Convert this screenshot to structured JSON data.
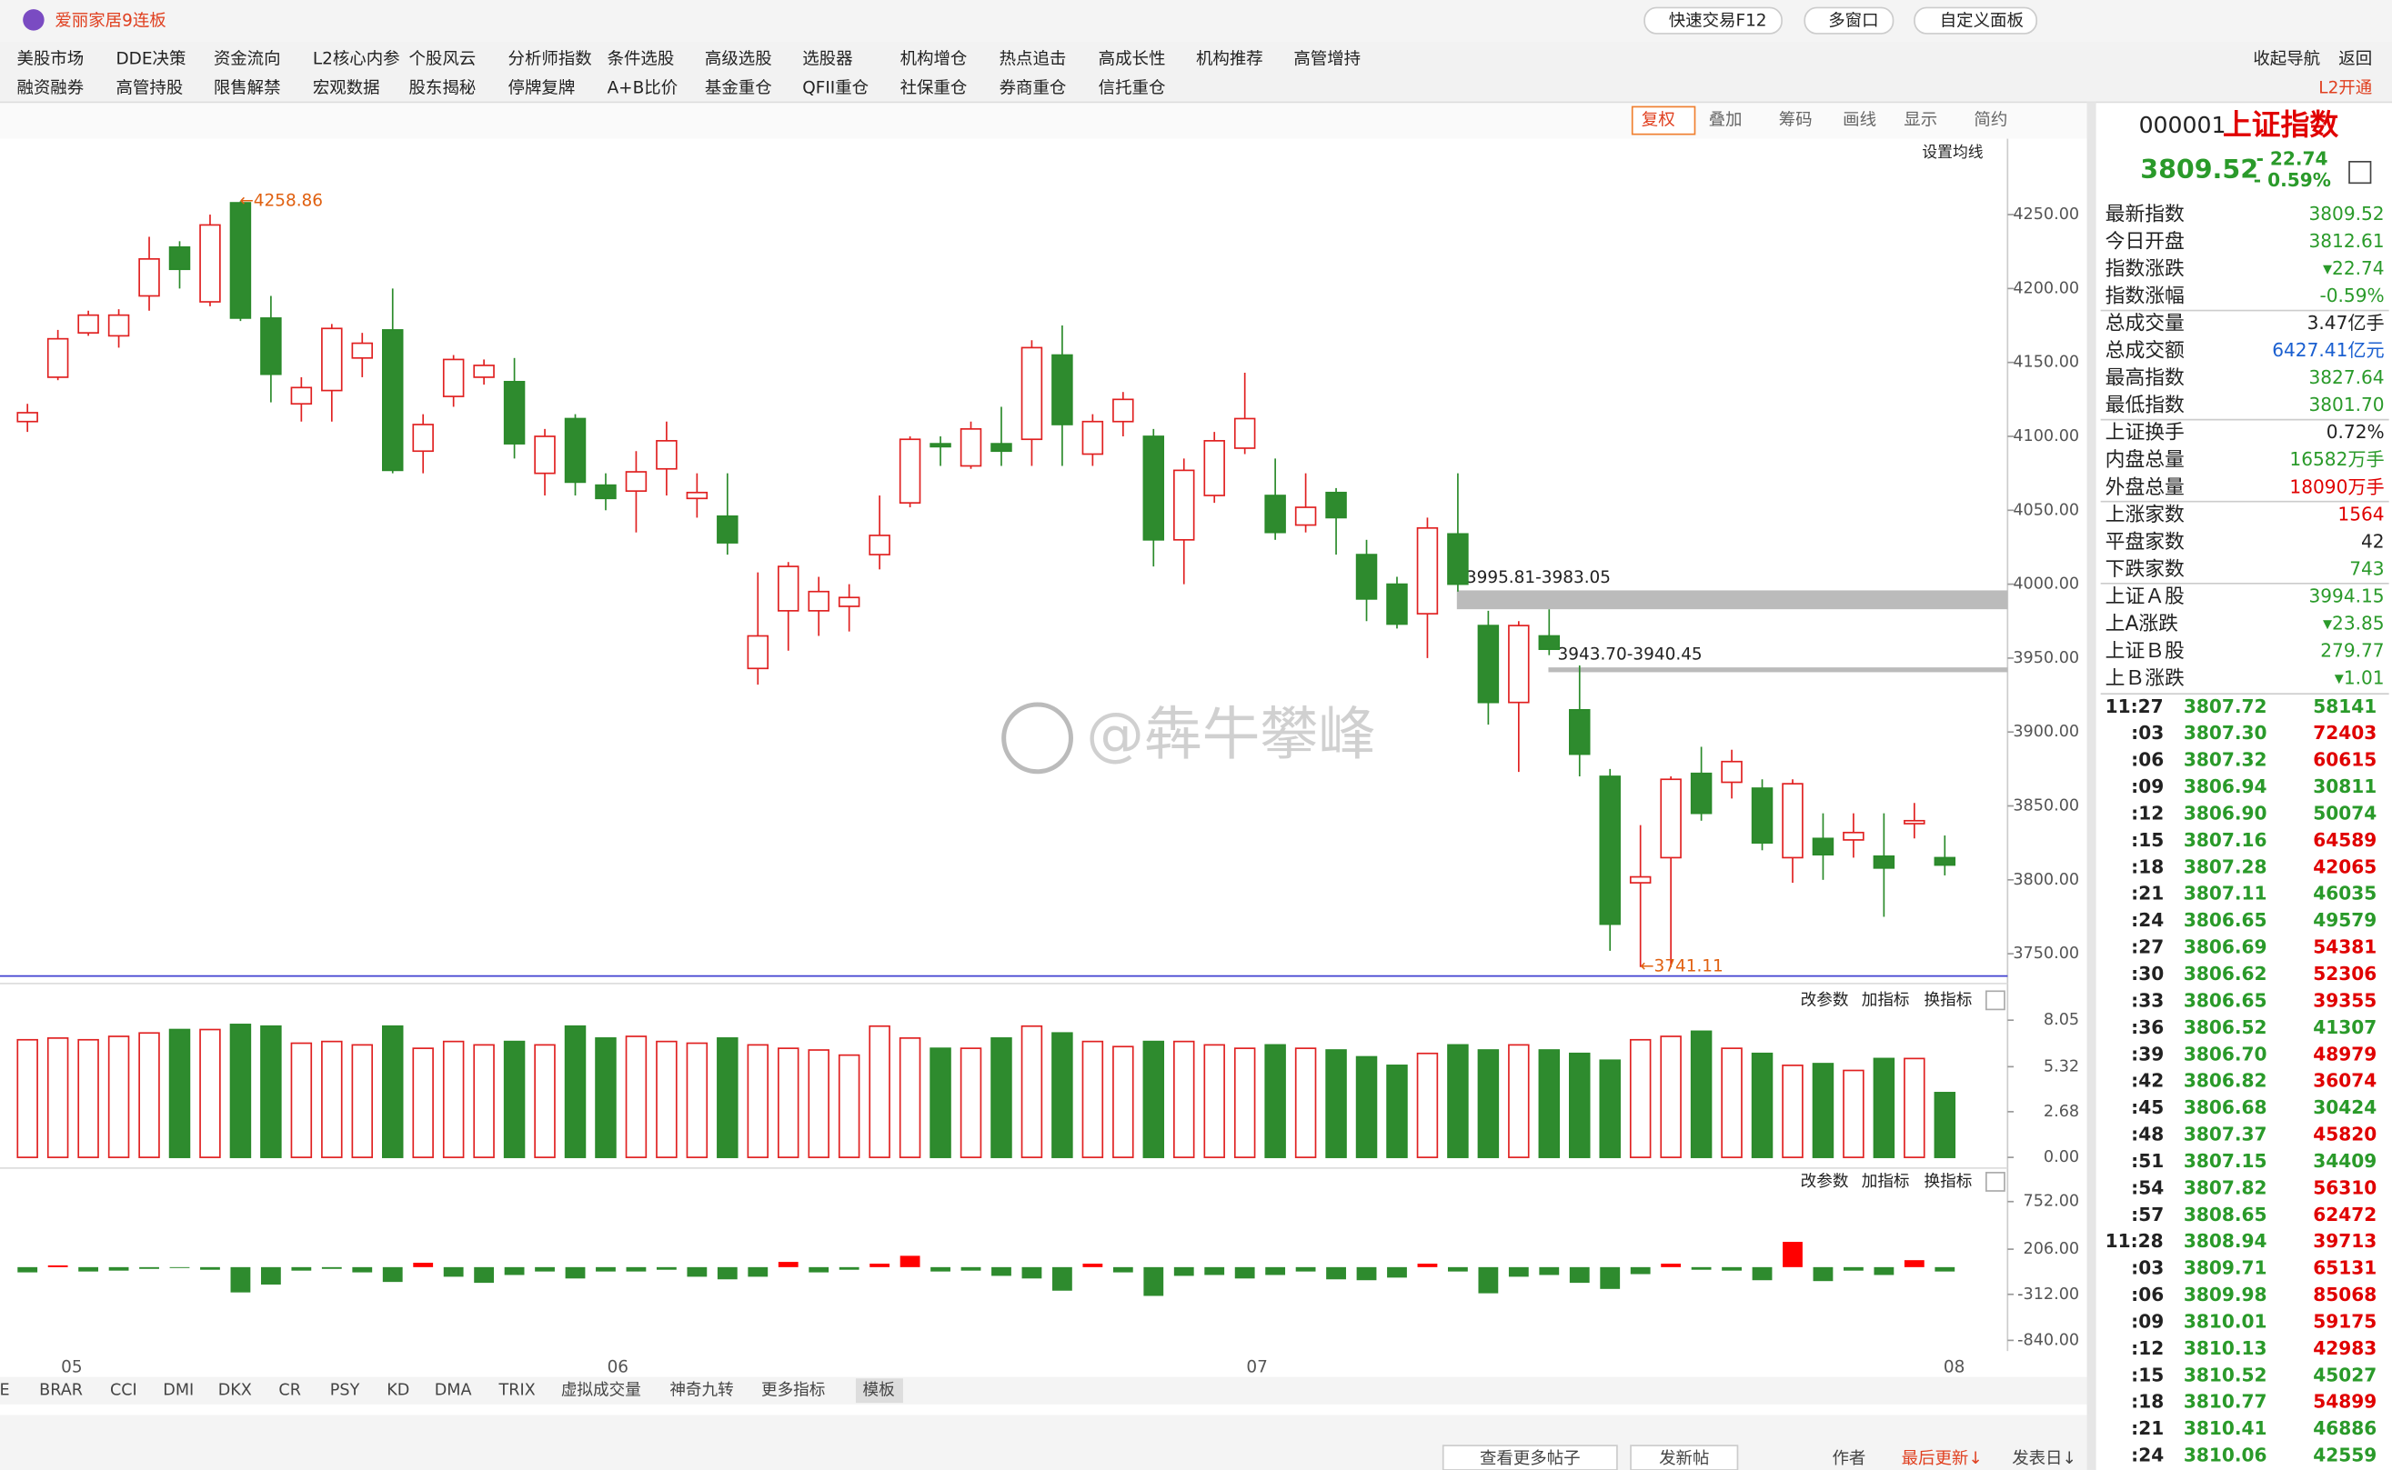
{
  "title_bar": {
    "title": "爱丽家居9连板",
    "buttons": [
      "快速交易F12",
      "多窗口",
      "自定义面板"
    ]
  },
  "menu": {
    "row1": [
      "美股市场",
      "DDE决策",
      "资金流向",
      "L2核心内参",
      "个股风云",
      "分析师指数",
      "条件选股",
      "高级选股",
      "选股器",
      "机构增仓",
      "热点追击",
      "高成长性",
      "机构推荐",
      "高管增持"
    ],
    "row2": [
      "融资融券",
      "高管持股",
      "限售解禁",
      "宏观数据",
      "股东揭秘",
      "停牌复牌",
      "A+B比价",
      "基金重仓",
      "QFII重仓",
      "社保重仓",
      "券商重仓",
      "信托重仓"
    ],
    "right1": [
      "收起导航",
      "返回"
    ],
    "right2": "L2开通"
  },
  "toolbar": [
    "复权",
    "叠加",
    "筹码",
    "画线",
    "显示",
    "简约"
  ],
  "ma_setting": "设置均线",
  "kline": {
    "ylim": [
      3735,
      4292
    ],
    "yticks": [
      {
        "value": 4250,
        "label": "4250.00"
      },
      {
        "value": 4200,
        "label": "4200.00"
      },
      {
        "value": 4150,
        "label": "4150.00"
      },
      {
        "value": 4100,
        "label": "4100.00"
      },
      {
        "value": 4050,
        "label": "4050.00"
      },
      {
        "value": 4000,
        "label": "4000.00"
      },
      {
        "value": 3950,
        "label": "3950.00"
      },
      {
        "value": 3900,
        "label": "3900.00"
      },
      {
        "value": 3850,
        "label": "3850.00"
      },
      {
        "value": 3800,
        "label": "3800.00"
      },
      {
        "value": 3750,
        "label": "3750.00"
      }
    ],
    "candles": [
      {
        "open": 4110,
        "close": 4116,
        "high": 4122,
        "low": 4103
      },
      {
        "open": 4140,
        "close": 4166,
        "high": 4172,
        "low": 4138
      },
      {
        "open": 4170,
        "close": 4182,
        "high": 4185,
        "low": 4168
      },
      {
        "open": 4168,
        "close": 4182,
        "high": 4186,
        "low": 4160
      },
      {
        "open": 4195,
        "close": 4220,
        "high": 4235,
        "low": 4185
      },
      {
        "open": 4228,
        "close": 4213,
        "high": 4232,
        "low": 4200
      },
      {
        "open": 4191,
        "close": 4243,
        "high": 4250,
        "low": 4188
      },
      {
        "open": 4258,
        "close": 4180,
        "high": 4259,
        "low": 4178
      },
      {
        "open": 4180,
        "close": 4142,
        "high": 4195,
        "low": 4123
      },
      {
        "open": 4122,
        "close": 4133,
        "high": 4140,
        "low": 4110
      },
      {
        "open": 4131,
        "close": 4173,
        "high": 4176,
        "low": 4110
      },
      {
        "open": 4153,
        "close": 4163,
        "high": 4170,
        "low": 4140
      },
      {
        "open": 4172,
        "close": 4077,
        "high": 4200,
        "low": 4075
      },
      {
        "open": 4090,
        "close": 4108,
        "high": 4115,
        "low": 4075
      },
      {
        "open": 4127,
        "close": 4152,
        "high": 4155,
        "low": 4120
      },
      {
        "open": 4140,
        "close": 4148,
        "high": 4152,
        "low": 4135
      },
      {
        "open": 4137,
        "close": 4095,
        "high": 4153,
        "low": 4085
      },
      {
        "open": 4075,
        "close": 4100,
        "high": 4105,
        "low": 4060
      },
      {
        "open": 4112,
        "close": 4069,
        "high": 4115,
        "low": 4060
      },
      {
        "open": 4067,
        "close": 4058,
        "high": 4075,
        "low": 4050
      },
      {
        "open": 4063,
        "close": 4076,
        "high": 4090,
        "low": 4035
      },
      {
        "open": 4078,
        "close": 4097,
        "high": 4110,
        "low": 4060
      },
      {
        "open": 4058,
        "close": 4062,
        "high": 4075,
        "low": 4045
      },
      {
        "open": 4046,
        "close": 4028,
        "high": 4075,
        "low": 4020
      },
      {
        "open": 3943,
        "close": 3965,
        "high": 4008,
        "low": 3932
      },
      {
        "open": 3982,
        "close": 4012,
        "high": 4015,
        "low": 3955
      },
      {
        "open": 3982,
        "close": 3995,
        "high": 4005,
        "low": 3965
      },
      {
        "open": 3985,
        "close": 3991,
        "high": 4000,
        "low": 3968
      },
      {
        "open": 4020,
        "close": 4033,
        "high": 4060,
        "low": 4010
      },
      {
        "open": 4055,
        "close": 4098,
        "high": 4100,
        "low": 4052
      },
      {
        "open": 4095,
        "close": 4093,
        "high": 4100,
        "low": 4080
      },
      {
        "open": 4080,
        "close": 4105,
        "high": 4110,
        "low": 4078
      },
      {
        "open": 4095,
        "close": 4090,
        "high": 4120,
        "low": 4080
      },
      {
        "open": 4098,
        "close": 4160,
        "high": 4165,
        "low": 4080
      },
      {
        "open": 4155,
        "close": 4108,
        "high": 4175,
        "low": 4080
      },
      {
        "open": 4088,
        "close": 4110,
        "high": 4115,
        "low": 4080
      },
      {
        "open": 4110,
        "close": 4125,
        "high": 4130,
        "low": 4100
      },
      {
        "open": 4100,
        "close": 4030,
        "high": 4105,
        "low": 4012
      },
      {
        "open": 4030,
        "close": 4077,
        "high": 4085,
        "low": 4000
      },
      {
        "open": 4060,
        "close": 4097,
        "high": 4103,
        "low": 4055
      },
      {
        "open": 4092,
        "close": 4112,
        "high": 4143,
        "low": 4088
      },
      {
        "open": 4060,
        "close": 4035,
        "high": 4085,
        "low": 4030
      },
      {
        "open": 4040,
        "close": 4052,
        "high": 4075,
        "low": 4035
      },
      {
        "open": 4062,
        "close": 4045,
        "high": 4065,
        "low": 4020
      },
      {
        "open": 4020,
        "close": 3990,
        "high": 4030,
        "low": 3975
      },
      {
        "open": 4000,
        "close": 3973,
        "high": 4005,
        "low": 3970
      },
      {
        "open": 3980,
        "close": 4038,
        "high": 4045,
        "low": 3950
      },
      {
        "open": 4034,
        "close": 4000,
        "high": 4075,
        "low": 3995
      },
      {
        "open": 3972,
        "close": 3920,
        "high": 3982,
        "low": 3905
      },
      {
        "open": 3920,
        "close": 3972,
        "high": 3975,
        "low": 3873
      },
      {
        "open": 3965,
        "close": 3956,
        "high": 3983,
        "low": 3952
      },
      {
        "open": 3915,
        "close": 3885,
        "high": 3945,
        "low": 3870
      },
      {
        "open": 3870,
        "close": 3770,
        "high": 3875,
        "low": 3752
      },
      {
        "open": 3798,
        "close": 3802,
        "high": 3837,
        "low": 3741
      },
      {
        "open": 3815,
        "close": 3868,
        "high": 3870,
        "low": 3741
      },
      {
        "open": 3872,
        "close": 3845,
        "high": 3890,
        "low": 3840
      },
      {
        "open": 3866,
        "close": 3880,
        "high": 3888,
        "low": 3855
      },
      {
        "open": 3862,
        "close": 3825,
        "high": 3868,
        "low": 3820
      },
      {
        "open": 3815,
        "close": 3865,
        "high": 3868,
        "low": 3798
      },
      {
        "open": 3828,
        "close": 3817,
        "high": 3845,
        "low": 3800
      },
      {
        "open": 3827,
        "close": 3832,
        "high": 3845,
        "low": 3815
      },
      {
        "open": 3816,
        "close": 3808,
        "high": 3845,
        "low": 3775
      },
      {
        "open": 3838,
        "close": 3840,
        "high": 3852,
        "low": 3828
      },
      {
        "open": 3815,
        "close": 3810,
        "high": 3830,
        "low": 3803
      }
    ],
    "annotations": [
      {
        "label": "←4258.86",
        "value": 4258.86
      },
      {
        "label": "←3741.11",
        "value": 3741.11
      }
    ],
    "gaps": [
      {
        "label": "3995.81-3983.05",
        "high": 3995.81,
        "low": 3983.05
      },
      {
        "label": "3943.70-3940.45",
        "high": 3943.7,
        "low": 3940.45
      }
    ]
  },
  "volume": {
    "ylim": [
      0,
      8.41
    ],
    "yticks": [
      {
        "value": 8.05,
        "label": "8.05"
      },
      {
        "value": 5.32,
        "label": "5.32"
      },
      {
        "value": 2.68,
        "label": "2.68"
      },
      {
        "value": 0,
        "label": "0.00"
      }
    ],
    "values": [
      6.9,
      7.0,
      6.9,
      7.1,
      7.3,
      7.5,
      7.5,
      7.8,
      7.7,
      6.7,
      6.8,
      6.6,
      7.7,
      6.4,
      6.8,
      6.6,
      6.8,
      6.6,
      7.7,
      7.0,
      7.1,
      6.8,
      6.7,
      7.0,
      6.6,
      6.4,
      6.3,
      6.0,
      7.7,
      7.0,
      6.4,
      6.4,
      7.0,
      7.7,
      7.3,
      6.8,
      6.5,
      6.8,
      6.8,
      6.6,
      6.4,
      6.6,
      6.4,
      6.3,
      5.9,
      5.4,
      6.1,
      6.6,
      6.3,
      6.6,
      6.3,
      6.1,
      5.7,
      6.9,
      7.1,
      7.4,
      6.4,
      6.1,
      5.4,
      5.5,
      5.1,
      5.8,
      5.8,
      3.8
    ]
  },
  "macd": {
    "ylim": [
      -840,
      752
    ],
    "yticks": [
      {
        "value": 752,
        "label": "752.00"
      },
      {
        "value": 206,
        "label": "206.00"
      },
      {
        "value": -312,
        "label": "-312.00"
      },
      {
        "value": -840,
        "label": "-840.00"
      }
    ],
    "values": [
      -60,
      20,
      -50,
      -40,
      -20,
      -10,
      -30,
      -290,
      -200,
      -40,
      -20,
      -60,
      -170,
      50,
      -110,
      -180,
      -90,
      -50,
      -130,
      -50,
      -50,
      -30,
      -110,
      -140,
      -110,
      60,
      -60,
      -30,
      40,
      130,
      -50,
      -40,
      -100,
      -130,
      -270,
      40,
      -60,
      -330,
      -100,
      -90,
      -130,
      -90,
      -50,
      -140,
      -150,
      -120,
      40,
      -50,
      -300,
      -110,
      -90,
      -180,
      -250,
      -80,
      40,
      -30,
      -40,
      -150,
      290,
      -160,
      -40,
      -90,
      80,
      -50
    ]
  },
  "panel_buttons": [
    "改参数",
    "加指标",
    "换指标"
  ],
  "x_labels": [
    "05",
    "06",
    "07",
    "08"
  ],
  "watermark": "@犇牛攀峰",
  "indicator_tabs": [
    "E",
    "BRAR",
    "CCI",
    "DMI",
    "DKX",
    "CR",
    "PSY",
    "KD",
    "DMA",
    "TRIX",
    "虚拟成交量",
    "神奇九转",
    "更多指标",
    "模板"
  ],
  "bottom_bar": [
    "查看更多帖子",
    "发新帖",
    "作者",
    "最后更新↓",
    "发表日↓"
  ],
  "quote": {
    "code": "000001",
    "name": "上证指数",
    "price": "3809.52",
    "change": "- 22.74",
    "pct": "- 0.59%",
    "rows": [
      {
        "label": "最新指数",
        "value": "3809.52",
        "color": "#2a9a2a"
      },
      {
        "label": "今日开盘",
        "value": "3812.61",
        "color": "#2a9a2a"
      },
      {
        "label": "指数涨跌",
        "value": "▾22.74",
        "color": "#2a9a2a"
      },
      {
        "label": "指数涨幅",
        "value": "-0.59%",
        "color": "#2a9a2a"
      },
      {
        "label": "总成交量",
        "value": "3.47亿手",
        "color": "#222222"
      },
      {
        "label": "总成交额",
        "value": "6427.41亿元",
        "color": "#1a5fd0"
      },
      {
        "label": "最高指数",
        "value": "3827.64",
        "color": "#2a9a2a"
      },
      {
        "label": "最低指数",
        "value": "3801.70",
        "color": "#2a9a2a"
      },
      {
        "label": "上证换手",
        "value": "0.72%",
        "color": "#222222"
      },
      {
        "label": "内盘总量",
        "value": "16582万手",
        "color": "#2a9a2a"
      },
      {
        "label": "外盘总量",
        "value": "18090万手",
        "color": "#e00000"
      },
      {
        "label": "上涨家数",
        "value": "1564",
        "color": "#e00000"
      },
      {
        "label": "平盘家数",
        "value": "42",
        "color": "#222222"
      },
      {
        "label": "下跌家数",
        "value": "743",
        "color": "#2a9a2a"
      },
      {
        "label": "上证Ａ股",
        "value": "3994.15",
        "color": "#2a9a2a"
      },
      {
        "label": "上A涨跌",
        "value": "▾23.85",
        "color": "#2a9a2a"
      },
      {
        "label": "上证Ｂ股",
        "value": "279.77",
        "color": "#2a9a2a"
      },
      {
        "label": "上Ｂ涨跌",
        "value": "▾1.01",
        "color": "#2a9a2a"
      }
    ]
  },
  "ticks": [
    {
      "time": "11:27",
      "price": "3807.72",
      "volume": "58141",
      "color": "#2a9a2a"
    },
    {
      "time": ":03",
      "price": "3807.30",
      "volume": "72403",
      "color": "#e00000"
    },
    {
      "time": ":06",
      "price": "3807.32",
      "volume": "60615",
      "color": "#e00000"
    },
    {
      "time": ":09",
      "price": "3806.94",
      "volume": "30811",
      "color": "#2a9a2a"
    },
    {
      "time": ":12",
      "price": "3806.90",
      "volume": "50074",
      "color": "#2a9a2a"
    },
    {
      "time": ":15",
      "price": "3807.16",
      "volume": "64589",
      "color": "#e00000"
    },
    {
      "time": ":18",
      "price": "3807.28",
      "volume": "42065",
      "color": "#e00000"
    },
    {
      "time": ":21",
      "price": "3807.11",
      "volume": "46035",
      "color": "#2a9a2a"
    },
    {
      "time": ":24",
      "price": "3806.65",
      "volume": "49579",
      "color": "#2a9a2a"
    },
    {
      "time": ":27",
      "price": "3806.69",
      "volume": "54381",
      "color": "#e00000"
    },
    {
      "time": ":30",
      "price": "3806.62",
      "volume": "52306",
      "color": "#e00000"
    },
    {
      "time": ":33",
      "price": "3806.65",
      "volume": "39355",
      "color": "#e00000"
    },
    {
      "time": ":36",
      "price": "3806.52",
      "volume": "41307",
      "color": "#2a9a2a"
    },
    {
      "time": ":39",
      "price": "3806.70",
      "volume": "48979",
      "color": "#e00000"
    },
    {
      "time": ":42",
      "price": "3806.82",
      "volume": "36074",
      "color": "#e00000"
    },
    {
      "time": ":45",
      "price": "3806.68",
      "volume": "30424",
      "color": "#2a9a2a"
    },
    {
      "time": ":48",
      "price": "3807.37",
      "volume": "45820",
      "color": "#e00000"
    },
    {
      "time": ":51",
      "price": "3807.15",
      "volume": "34409",
      "color": "#2a9a2a"
    },
    {
      "time": ":54",
      "price": "3807.82",
      "volume": "56310",
      "color": "#e00000"
    },
    {
      "time": ":57",
      "price": "3808.65",
      "volume": "62472",
      "color": "#e00000"
    },
    {
      "time": "11:28",
      "price": "3808.94",
      "volume": "39713",
      "color": "#e00000"
    },
    {
      "time": ":03",
      "price": "3809.71",
      "volume": "65131",
      "color": "#e00000"
    },
    {
      "time": ":06",
      "price": "3809.98",
      "volume": "85068",
      "color": "#e00000"
    },
    {
      "time": ":09",
      "price": "3810.01",
      "volume": "59175",
      "color": "#e00000"
    },
    {
      "time": ":12",
      "price": "3810.13",
      "volume": "42983",
      "color": "#e00000"
    },
    {
      "time": ":15",
      "price": "3810.52",
      "volume": "45027",
      "color": "#2a9a2a"
    },
    {
      "time": ":18",
      "price": "3810.77",
      "volume": "54899",
      "color": "#e00000"
    },
    {
      "time": ":21",
      "price": "3810.41",
      "volume": "46886",
      "color": "#2a9a2a"
    },
    {
      "time": ":24",
      "price": "3810.06",
      "volume": "42559",
      "color": "#2a9a2a"
    }
  ]
}
